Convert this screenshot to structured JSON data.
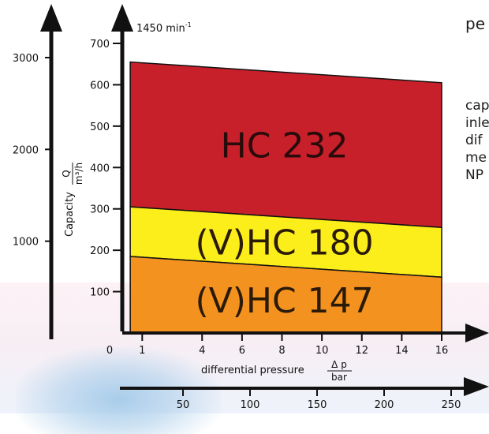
{
  "chart_data": {
    "type": "area",
    "speed_label": "1450 min",
    "speed_sup": "-1",
    "ylabel_word": "Capacity",
    "ylabel_frac_num": "Q",
    "ylabel_frac_den": "m³/h",
    "y_ticks": [
      100,
      200,
      300,
      400,
      500,
      600,
      700
    ],
    "y_range": [
      0,
      780
    ],
    "y2_ticks": [
      1000,
      2000,
      3000
    ],
    "y2_range": [
      0,
      3300
    ],
    "xlabel_word": "differential pressure",
    "xlabel_frac_num": "Δ p",
    "xlabel_frac_den": "bar",
    "x_ticks": [
      0,
      1,
      4,
      6,
      8,
      10,
      12,
      14,
      16
    ],
    "x_range": [
      0,
      17
    ],
    "x2_ticks": [
      50,
      100,
      150,
      200,
      250
    ],
    "series": [
      {
        "name": "HC 232",
        "x": [
          0.4,
          16
        ],
        "upper": [
          655,
          605
        ],
        "lower": [
          305,
          255
        ],
        "color": "#c8202a",
        "text_color": "#2a0b0b"
      },
      {
        "name": "(V)HC 180",
        "x": [
          0.4,
          16
        ],
        "upper": [
          305,
          255
        ],
        "lower": [
          185,
          135
        ],
        "color": "#fbee1a",
        "text_color": "#2a1a08"
      },
      {
        "name": "(V)HC 147",
        "x": [
          0.4,
          16
        ],
        "upper": [
          185,
          135
        ],
        "lower": [
          0,
          0
        ],
        "color": "#f4921f",
        "text_color": "#2a1a08"
      }
    ]
  },
  "side_text": {
    "title_fragment": "pe",
    "lines": [
      "cap",
      "inle",
      "dif",
      "me",
      "NP"
    ]
  }
}
